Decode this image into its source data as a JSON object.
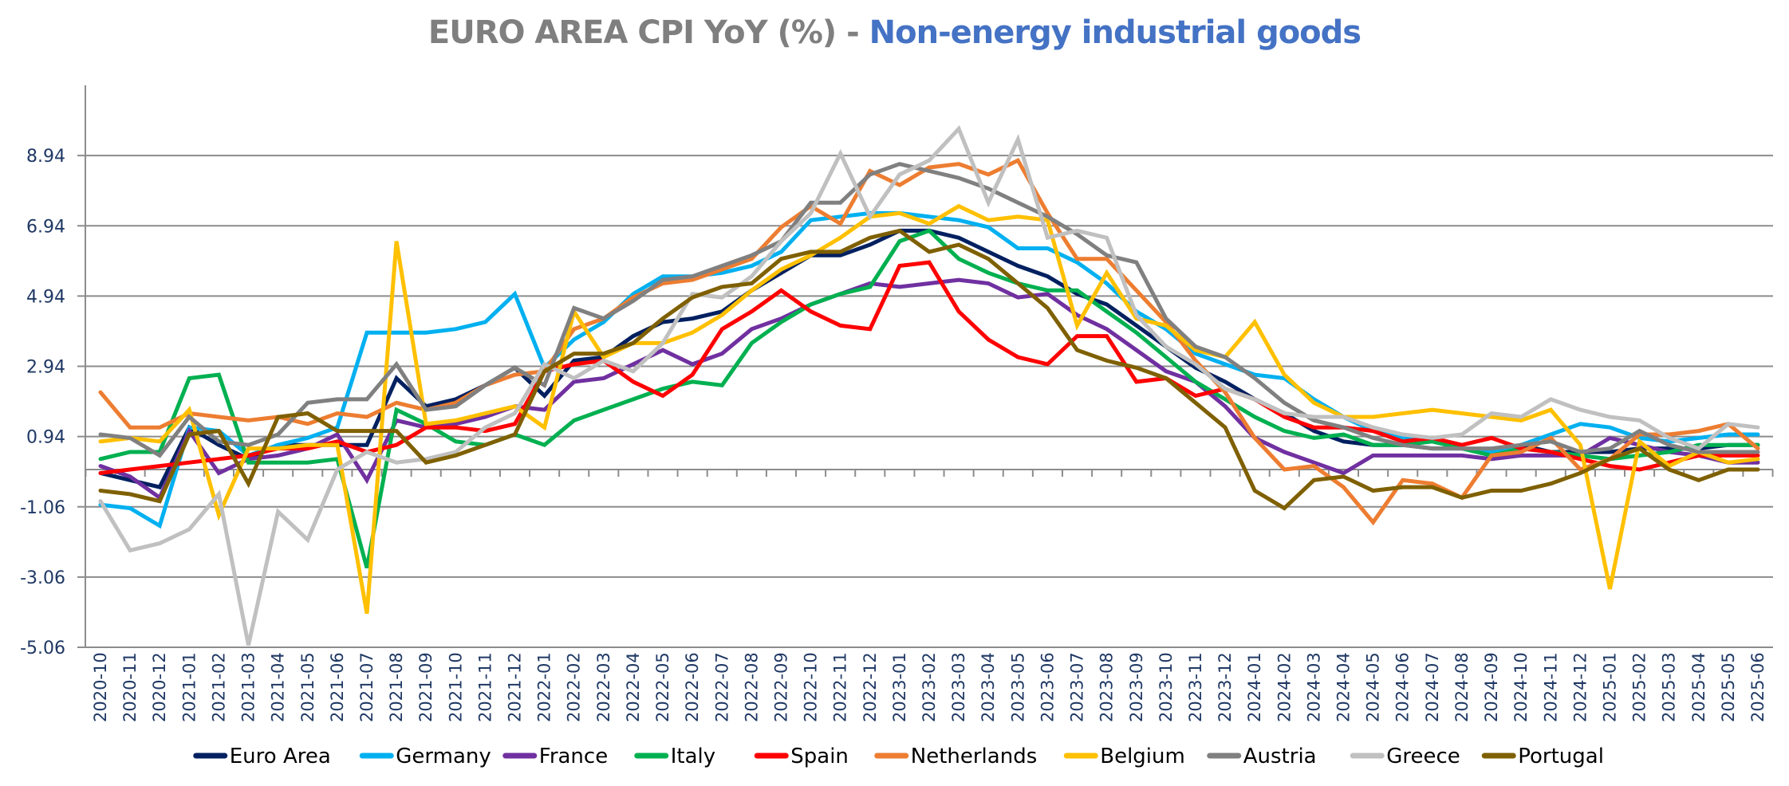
{
  "title": {
    "part1": "EURO AREA CPI YoY (%)  - ",
    "part2": "Non-energy industrial goods"
  },
  "chart_data": {
    "type": "line",
    "title": "EURO AREA CPI YoY (%)  - Non-energy industrial goods",
    "xlabel": "",
    "ylabel": "",
    "ylim": [
      -5.06,
      10.94
    ],
    "yticks": [
      8.94,
      6.94,
      4.94,
      2.94,
      0.94,
      -1.06,
      -3.06,
      -5.06
    ],
    "grid": true,
    "legend_position": "bottom",
    "x": [
      "2020-10",
      "2020-11",
      "2020-12",
      "2021-01",
      "2021-02",
      "2021-03",
      "2021-04",
      "2021-05",
      "2021-06",
      "2021-07",
      "2021-08",
      "2021-09",
      "2021-10",
      "2021-11",
      "2021-12",
      "2022-01",
      "2022-02",
      "2022-03",
      "2022-04",
      "2022-05",
      "2022-06",
      "2022-07",
      "2022-08",
      "2022-09",
      "2022-10",
      "2022-11",
      "2022-12",
      "2023-01",
      "2023-02",
      "2023-03",
      "2023-04",
      "2023-05",
      "2023-06",
      "2023-07",
      "2023-08",
      "2023-09",
      "2023-10",
      "2023-11",
      "2023-12",
      "2024-01",
      "2024-02",
      "2024-03",
      "2024-04",
      "2024-05",
      "2024-06",
      "2024-07",
      "2024-08",
      "2024-09",
      "2024-10",
      "2024-11",
      "2024-12",
      "2025-01",
      "2025-02",
      "2025-03",
      "2025-04",
      "2025-05",
      "2025-06"
    ],
    "series": [
      {
        "name": "Euro Area",
        "color": "#002060",
        "values": [
          -0.1,
          -0.3,
          -0.5,
          1.2,
          0.7,
          0.3,
          0.7,
          0.7,
          0.7,
          0.7,
          2.6,
          1.8,
          2.0,
          2.4,
          2.9,
          2.1,
          3.1,
          3.2,
          3.8,
          4.2,
          4.3,
          4.5,
          5.1,
          5.6,
          6.1,
          6.1,
          6.4,
          6.8,
          6.8,
          6.6,
          6.2,
          5.8,
          5.5,
          5.0,
          4.7,
          4.1,
          3.5,
          2.9,
          2.5,
          2.0,
          1.6,
          1.1,
          0.8,
          0.7,
          0.7,
          0.6,
          0.6,
          0.5,
          0.7,
          0.5,
          0.5,
          0.5,
          0.6,
          0.6,
          0.6,
          0.7,
          0.7
        ]
      },
      {
        "name": "Germany",
        "color": "#00b0f0",
        "values": [
          -1.0,
          -1.1,
          -1.6,
          1.2,
          1.1,
          0.4,
          0.7,
          0.9,
          1.2,
          3.9,
          3.9,
          3.9,
          4.0,
          4.2,
          5.0,
          2.9,
          3.7,
          4.2,
          5.0,
          5.5,
          5.5,
          5.6,
          5.8,
          6.2,
          7.1,
          7.2,
          7.3,
          7.3,
          7.2,
          7.1,
          6.9,
          6.3,
          6.3,
          5.9,
          5.3,
          4.5,
          4.0,
          3.3,
          3.0,
          2.7,
          2.6,
          2.0,
          1.5,
          1.1,
          0.9,
          0.9,
          0.6,
          0.5,
          0.7,
          1.0,
          1.3,
          1.2,
          0.9,
          0.8,
          0.9,
          1.0,
          1.0
        ]
      },
      {
        "name": "France",
        "color": "#7030a0",
        "values": [
          0.1,
          -0.2,
          -0.8,
          1.1,
          -0.1,
          0.3,
          0.4,
          0.6,
          1.0,
          -0.3,
          1.4,
          1.2,
          1.3,
          1.5,
          1.8,
          1.7,
          2.5,
          2.6,
          3.0,
          3.4,
          3.0,
          3.3,
          4.0,
          4.3,
          4.7,
          5.0,
          5.3,
          5.2,
          5.3,
          5.4,
          5.3,
          4.9,
          5.0,
          4.4,
          4.0,
          3.4,
          2.8,
          2.5,
          1.8,
          0.9,
          0.5,
          0.2,
          -0.1,
          0.4,
          0.4,
          0.4,
          0.4,
          0.3,
          0.4,
          0.4,
          0.4,
          0.9,
          0.7,
          0.5,
          0.4,
          0.2,
          0.2
        ]
      },
      {
        "name": "Italy",
        "color": "#00b050",
        "values": [
          0.3,
          0.5,
          0.5,
          2.6,
          2.7,
          0.2,
          0.2,
          0.2,
          0.3,
          -2.8,
          1.7,
          1.3,
          0.8,
          0.7,
          1.0,
          0.7,
          1.4,
          1.7,
          2.0,
          2.3,
          2.5,
          2.4,
          3.6,
          4.2,
          4.7,
          5.0,
          5.2,
          6.5,
          6.8,
          6.0,
          5.6,
          5.3,
          5.1,
          5.1,
          4.5,
          3.9,
          3.2,
          2.5,
          2.0,
          1.5,
          1.1,
          0.9,
          1.0,
          0.7,
          0.7,
          0.8,
          0.6,
          0.4,
          0.6,
          0.5,
          0.4,
          0.3,
          0.4,
          0.5,
          0.7,
          0.7,
          0.7
        ]
      },
      {
        "name": "Spain",
        "color": "#ff0000",
        "values": [
          -0.1,
          0.0,
          0.1,
          0.2,
          0.3,
          0.4,
          0.6,
          0.6,
          0.8,
          0.5,
          0.7,
          1.2,
          1.2,
          1.1,
          1.3,
          2.8,
          3.0,
          3.1,
          2.5,
          2.1,
          2.7,
          4.0,
          4.5,
          5.1,
          4.5,
          4.1,
          4.0,
          5.8,
          5.9,
          4.5,
          3.7,
          3.2,
          3.0,
          3.8,
          3.8,
          2.5,
          2.6,
          2.1,
          2.3,
          2.0,
          1.5,
          1.2,
          1.2,
          1.1,
          0.8,
          0.9,
          0.7,
          0.9,
          0.6,
          0.5,
          0.3,
          0.1,
          0.0,
          0.2,
          0.4,
          0.4,
          0.4
        ]
      },
      {
        "name": "Netherlands",
        "color": "#ed7d31",
        "values": [
          2.2,
          1.2,
          1.2,
          1.6,
          1.5,
          1.4,
          1.5,
          1.3,
          1.6,
          1.5,
          1.9,
          1.7,
          1.9,
          2.4,
          2.7,
          2.8,
          4.0,
          4.3,
          4.9,
          5.3,
          5.4,
          5.7,
          6.0,
          6.9,
          7.5,
          7.0,
          8.5,
          8.1,
          8.6,
          8.7,
          8.4,
          8.8,
          7.3,
          6.0,
          6.0,
          5.1,
          4.2,
          3.1,
          2.2,
          0.9,
          0.0,
          0.1,
          -0.5,
          -1.5,
          -0.3,
          -0.4,
          -0.8,
          0.4,
          0.5,
          0.9,
          0.0,
          0.3,
          1.0,
          1.0,
          1.1,
          1.3,
          0.6
        ]
      },
      {
        "name": "Belgium",
        "color": "#ffc000",
        "values": [
          0.8,
          0.9,
          0.8,
          1.7,
          -1.3,
          0.6,
          0.6,
          0.7,
          0.7,
          -4.1,
          6.5,
          1.3,
          1.4,
          1.6,
          1.8,
          1.2,
          4.5,
          3.2,
          3.6,
          3.6,
          3.9,
          4.4,
          5.1,
          5.7,
          6.1,
          6.6,
          7.2,
          7.3,
          7.0,
          7.5,
          7.1,
          7.2,
          7.1,
          4.1,
          5.6,
          4.3,
          4.1,
          3.4,
          3.2,
          4.2,
          2.7,
          1.9,
          1.5,
          1.5,
          1.6,
          1.7,
          1.6,
          1.5,
          1.4,
          1.7,
          0.7,
          -3.4,
          0.8,
          0.1,
          0.5,
          0.2,
          0.3
        ]
      },
      {
        "name": "Austria",
        "color": "#808080",
        "values": [
          1.0,
          0.9,
          0.4,
          1.5,
          0.8,
          0.7,
          1.0,
          1.9,
          2.0,
          2.0,
          3.0,
          1.7,
          1.8,
          2.4,
          2.9,
          2.4,
          4.6,
          4.3,
          4.8,
          5.4,
          5.5,
          5.8,
          6.1,
          6.5,
          7.6,
          7.6,
          8.4,
          8.7,
          8.5,
          8.3,
          8.0,
          7.6,
          7.2,
          6.7,
          6.1,
          5.9,
          4.3,
          3.5,
          3.2,
          2.6,
          1.9,
          1.4,
          1.2,
          0.9,
          0.7,
          0.6,
          0.6,
          0.6,
          0.7,
          0.8,
          0.5,
          0.6,
          1.1,
          0.7,
          0.5,
          0.5,
          0.5
        ]
      },
      {
        "name": "Greece",
        "color": "#c0c0c0",
        "values": [
          -0.9,
          -2.3,
          -2.1,
          -1.7,
          -0.7,
          -5.0,
          -1.2,
          -2.0,
          0.0,
          0.5,
          0.2,
          0.3,
          0.5,
          1.2,
          1.6,
          3.0,
          2.6,
          3.1,
          2.8,
          3.6,
          5.0,
          4.9,
          5.5,
          6.5,
          7.3,
          9.0,
          7.2,
          8.4,
          8.8,
          9.7,
          7.6,
          9.4,
          6.6,
          6.8,
          6.6,
          4.4,
          3.5,
          3.0,
          2.3,
          2.0,
          1.6,
          1.5,
          1.5,
          1.2,
          1.0,
          0.9,
          1.0,
          1.6,
          1.5,
          2.0,
          1.7,
          1.5,
          1.4,
          0.9,
          0.6,
          1.3,
          1.2
        ]
      },
      {
        "name": "Portugal",
        "color": "#7f6000",
        "values": [
          -0.6,
          -0.7,
          -0.9,
          1.0,
          1.1,
          -0.4,
          1.5,
          1.6,
          1.1,
          1.1,
          1.1,
          0.2,
          0.4,
          0.7,
          1.0,
          2.8,
          3.3,
          3.3,
          3.6,
          4.3,
          4.9,
          5.2,
          5.3,
          6.0,
          6.2,
          6.2,
          6.6,
          6.8,
          6.2,
          6.4,
          6.0,
          5.3,
          4.6,
          3.4,
          3.1,
          2.9,
          2.6,
          1.9,
          1.2,
          -0.6,
          -1.1,
          -0.3,
          -0.2,
          -0.6,
          -0.5,
          -0.5,
          -0.8,
          -0.6,
          -0.6,
          -0.4,
          -0.1,
          0.3,
          0.6,
          0.0,
          -0.3,
          0.0,
          0.0
        ]
      }
    ]
  }
}
